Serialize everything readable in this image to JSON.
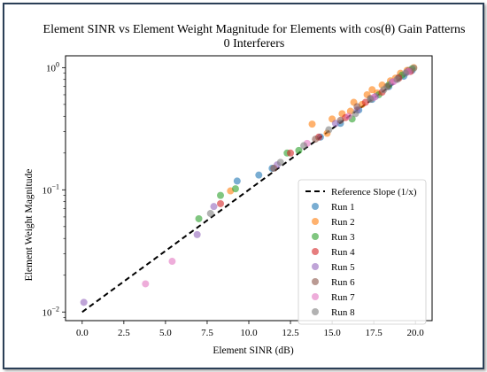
{
  "chart_data": {
    "type": "scatter",
    "title_line1": "Element SINR vs Element Weight Magnitude for Elements with cos(θ) Gain Patterns",
    "title_line2": "0 Interferers",
    "xlabel": "Element SINR (dB)",
    "ylabel": "Element Weight Magnitude",
    "xlim": [
      -1,
      21
    ],
    "ylim": [
      0.0085,
      1.25
    ],
    "yscale": "log",
    "grid": false,
    "legend_position": "lower-right",
    "x_ticks": [
      {
        "value": 0.0,
        "label": "0.0"
      },
      {
        "value": 2.5,
        "label": "2.5"
      },
      {
        "value": 5.0,
        "label": "5.0"
      },
      {
        "value": 7.5,
        "label": "7.5"
      },
      {
        "value": 10.0,
        "label": "10.0"
      },
      {
        "value": 12.5,
        "label": "12.5"
      },
      {
        "value": 15.0,
        "label": "15.0"
      },
      {
        "value": 17.5,
        "label": "17.5"
      },
      {
        "value": 20.0,
        "label": "20.0"
      }
    ],
    "y_ticks": [
      {
        "value": 0.01,
        "base": "10",
        "exp": "−2"
      },
      {
        "value": 0.1,
        "base": "10",
        "exp": "−1"
      },
      {
        "value": 1,
        "base": "10",
        "exp": "0"
      }
    ],
    "reference_line": {
      "name": "Reference Slope (1/x)",
      "color": "#000000",
      "x": [
        0,
        20
      ],
      "y": [
        0.01,
        1.0
      ]
    },
    "series": [
      {
        "name": "Run 1",
        "color": "#1f77b4",
        "points": [
          [
            9.3,
            0.118
          ],
          [
            10.6,
            0.132
          ],
          [
            11.4,
            0.15
          ],
          [
            14.3,
            0.27
          ],
          [
            15.5,
            0.35
          ],
          [
            16.6,
            0.45
          ],
          [
            17.4,
            0.55
          ],
          [
            18.4,
            0.7
          ],
          [
            19.3,
            0.85
          ],
          [
            19.8,
            0.95
          ]
        ]
      },
      {
        "name": "Run 2",
        "color": "#ff7f0e",
        "points": [
          [
            8.9,
            0.098
          ],
          [
            13.8,
            0.345
          ],
          [
            14.7,
            0.29
          ],
          [
            15.0,
            0.38
          ],
          [
            15.6,
            0.42
          ],
          [
            16.1,
            0.44
          ],
          [
            16.3,
            0.52
          ],
          [
            16.8,
            0.5
          ],
          [
            17.1,
            0.6
          ],
          [
            17.4,
            0.66
          ],
          [
            17.7,
            0.62
          ],
          [
            18.0,
            0.72
          ],
          [
            18.5,
            0.78
          ],
          [
            18.8,
            0.82
          ],
          [
            19.1,
            0.9
          ],
          [
            19.5,
            0.95
          ],
          [
            19.9,
            1.0
          ]
        ]
      },
      {
        "name": "Run 3",
        "color": "#2ca02c",
        "points": [
          [
            7.0,
            0.058
          ],
          [
            8.3,
            0.09
          ],
          [
            9.2,
            0.102
          ],
          [
            12.3,
            0.2
          ],
          [
            13.0,
            0.21
          ],
          [
            16.2,
            0.38
          ],
          [
            17.8,
            0.6
          ],
          [
            18.4,
            0.72
          ],
          [
            19.2,
            0.87
          ],
          [
            19.8,
            0.98
          ]
        ]
      },
      {
        "name": "Run 4",
        "color": "#d62728",
        "points": [
          [
            8.3,
            0.077
          ],
          [
            12.5,
            0.2
          ],
          [
            14.2,
            0.27
          ],
          [
            15.8,
            0.39
          ],
          [
            17.0,
            0.52
          ],
          [
            18.0,
            0.63
          ],
          [
            19.0,
            0.82
          ],
          [
            19.7,
            0.93
          ]
        ]
      },
      {
        "name": "Run 5",
        "color": "#9467bd",
        "points": [
          [
            0.1,
            0.012
          ],
          [
            6.9,
            0.043
          ],
          [
            7.9,
            0.073
          ],
          [
            11.7,
            0.16
          ],
          [
            15.2,
            0.35
          ],
          [
            16.5,
            0.45
          ],
          [
            17.6,
            0.58
          ],
          [
            18.6,
            0.76
          ],
          [
            19.5,
            0.92
          ]
        ]
      },
      {
        "name": "Run 6",
        "color": "#8c564b",
        "points": [
          [
            11.5,
            0.15
          ],
          [
            14.0,
            0.26
          ],
          [
            15.5,
            0.37
          ],
          [
            16.5,
            0.48
          ],
          [
            17.3,
            0.56
          ],
          [
            18.3,
            0.7
          ],
          [
            19.0,
            0.83
          ],
          [
            19.6,
            0.95
          ]
        ]
      },
      {
        "name": "Run 7",
        "color": "#e377c2",
        "points": [
          [
            3.8,
            0.017
          ],
          [
            5.4,
            0.026
          ],
          [
            13.5,
            0.24
          ],
          [
            16.0,
            0.4
          ],
          [
            17.5,
            0.57
          ],
          [
            18.7,
            0.77
          ],
          [
            19.6,
            0.93
          ]
        ]
      },
      {
        "name": "Run 8",
        "color": "#7f7f7f",
        "points": [
          [
            7.7,
            0.064
          ],
          [
            11.9,
            0.168
          ],
          [
            13.3,
            0.23
          ],
          [
            14.8,
            0.31
          ],
          [
            16.4,
            0.42
          ],
          [
            17.3,
            0.55
          ],
          [
            18.1,
            0.66
          ],
          [
            18.9,
            0.8
          ],
          [
            19.4,
            0.9
          ],
          [
            19.9,
            0.99
          ]
        ]
      }
    ]
  }
}
